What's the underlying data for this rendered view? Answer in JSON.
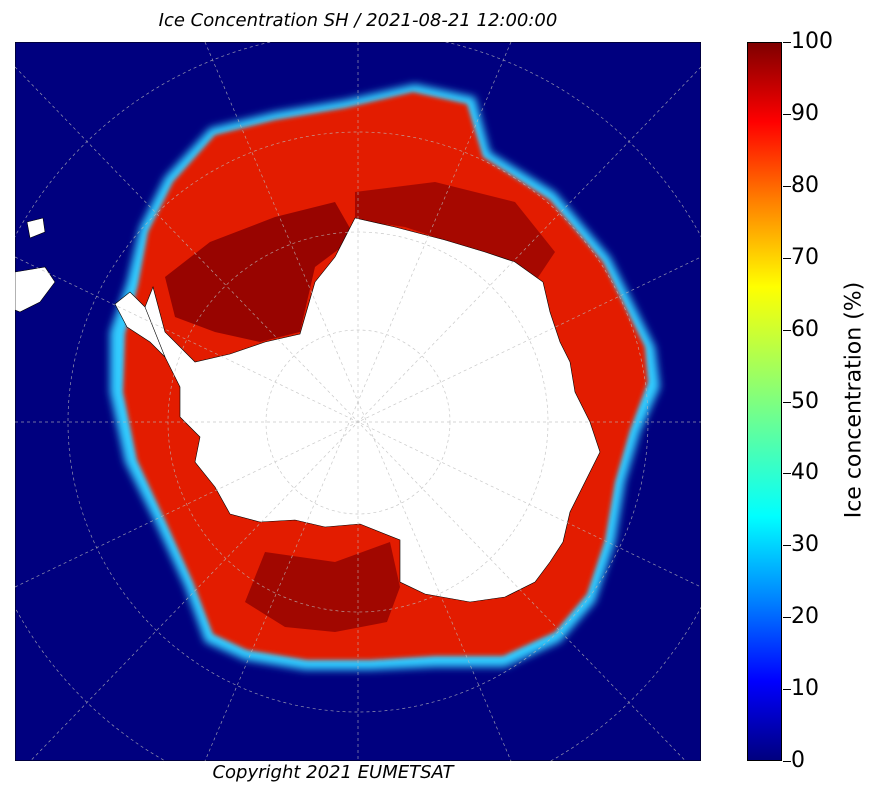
{
  "title": "Ice Concentration SH / 2021-08-21 12:00:00",
  "copyright": "Copyright 2021 EUMETSAT",
  "colorbar": {
    "label": "Ice concentration (%)",
    "ticks": [
      "0",
      "10",
      "20",
      "30",
      "40",
      "50",
      "60",
      "70",
      "80",
      "90",
      "100"
    ],
    "range": [
      0,
      100
    ],
    "colormap": "jet"
  },
  "map": {
    "projection": "south polar stereographic",
    "region": "Southern Hemisphere / Antarctica",
    "grid": true,
    "colors": {
      "ocean": "#00007f",
      "ice_high": "#7f0000",
      "ice": "#e31a00",
      "ice_edge": "#00ffff",
      "land": "#ffffff"
    }
  }
}
